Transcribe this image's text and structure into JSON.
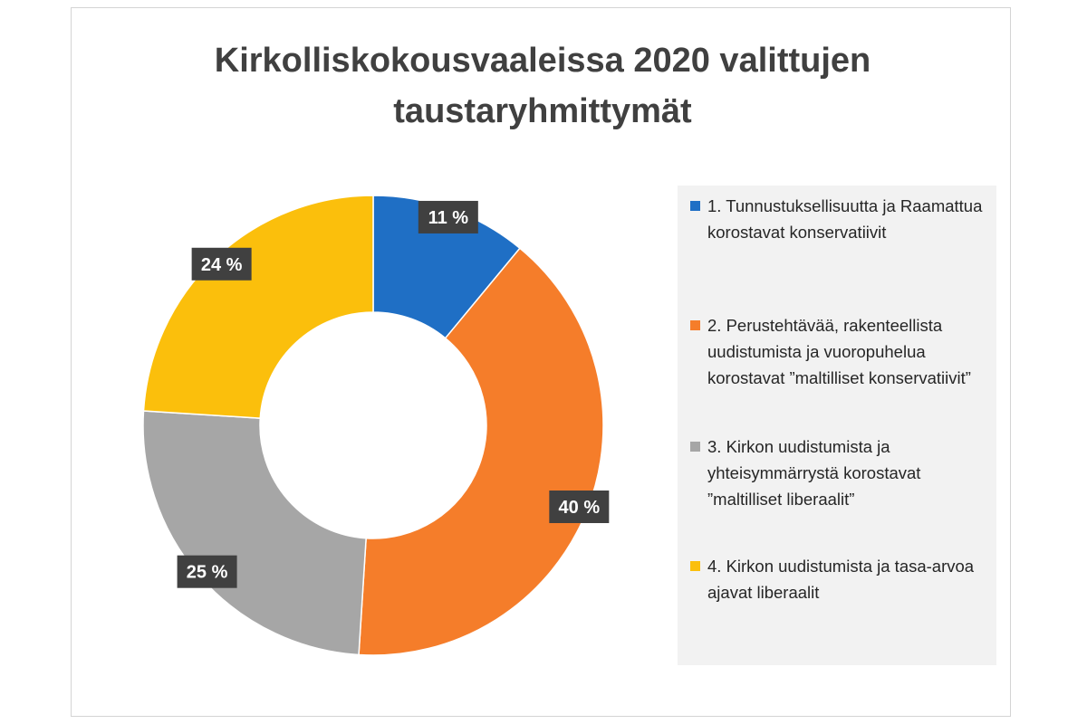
{
  "chart_data": {
    "type": "pie",
    "variant": "donut",
    "title_lines": [
      "Kirkolliskokousvaaleissa 2020 valittujen",
      "taustaryhmittymät"
    ],
    "legend_position": "right",
    "slices": [
      {
        "label": "1. Tunnustuksellisuutta ja Raamattua korostavat konservatiivit",
        "value": 11,
        "data_label": "11 %",
        "color": "#1f6fc5"
      },
      {
        "label": "2. Perustehtävää, rakenteellista uudistumista ja vuoropuhelua korostavat ”maltilliset konservatiivit”",
        "value": 40,
        "data_label": "40 %",
        "color": "#f57d2a"
      },
      {
        "label": "3. Kirkon uudistumista ja yhteisymmärrystä korostavat ”maltilliset liberaalit”",
        "value": 25,
        "data_label": "25 %",
        "color": "#a6a6a6"
      },
      {
        "label": "4. Kirkon uudistumista ja tasa-arvoa ajavat liberaalit",
        "value": 24,
        "data_label": "24 %",
        "color": "#fbbf0c"
      }
    ]
  }
}
